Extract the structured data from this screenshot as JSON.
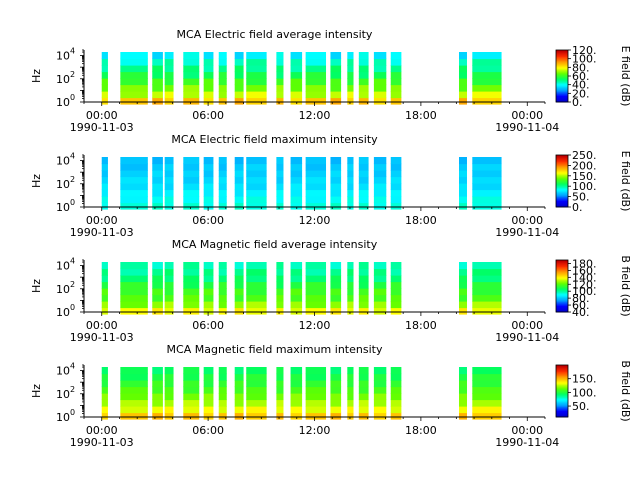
{
  "chart_data": [
    {
      "type": "heatmap",
      "title": "MCA  Electric field average intensity",
      "ylabel": "Hz",
      "y_scale": "log",
      "ylim": [
        1,
        30000
      ],
      "y_ticks": [
        {
          "value": 1,
          "label": "10",
          "exp": "0"
        },
        {
          "value": 100,
          "label": "10",
          "exp": "2"
        },
        {
          "value": 10000,
          "label": "10",
          "exp": "4"
        }
      ],
      "x_ticks": [
        {
          "hour": 0,
          "label": "00:00",
          "date": "1990-11-03"
        },
        {
          "hour": 6,
          "label": "06:00",
          "date": ""
        },
        {
          "hour": 12,
          "label": "12:00",
          "date": ""
        },
        {
          "hour": 18,
          "label": "18:00",
          "date": ""
        },
        {
          "hour": 24,
          "label": "00:00",
          "date": "1990-11-04"
        }
      ],
      "colorbar": {
        "label": "E field (dB)",
        "range": [
          0,
          120
        ],
        "ticks": [
          "0.",
          "20.",
          "40.",
          "60.",
          "80.",
          "100.",
          "120."
        ],
        "tick_values": [
          0,
          20,
          40,
          60,
          80,
          100,
          120
        ]
      },
      "colormap": [
        "#0000c8",
        "#0000ff",
        "#00a0ff",
        "#00ffff",
        "#00ff60",
        "#60ff00",
        "#ffff00",
        "#ffa000",
        "#ff3000",
        "#c00000"
      ],
      "data_intervals_hours": [
        [
          0.0,
          0.35
        ],
        [
          1.05,
          2.6
        ],
        [
          2.85,
          3.45
        ],
        [
          3.55,
          4.05
        ],
        [
          4.6,
          5.5
        ],
        [
          5.75,
          6.3
        ],
        [
          6.6,
          7.05
        ],
        [
          7.5,
          8.0
        ],
        [
          8.15,
          9.3
        ],
        [
          9.85,
          10.25
        ],
        [
          10.65,
          11.3
        ],
        [
          11.5,
          12.65
        ],
        [
          12.9,
          13.5
        ],
        [
          13.85,
          14.2
        ],
        [
          14.5,
          15.05
        ],
        [
          15.35,
          16.05
        ],
        [
          16.3,
          16.9
        ],
        [
          20.15,
          20.6
        ],
        [
          20.9,
          22.55
        ]
      ],
      "band_values_low_to_high": [
        88,
        75,
        68,
        62,
        55,
        50,
        45,
        38
      ]
    },
    {
      "type": "heatmap",
      "title": "MCA  Electric field maximum intensity",
      "ylabel": "Hz",
      "y_scale": "log",
      "ylim": [
        1,
        30000
      ],
      "y_ticks": [
        {
          "value": 1,
          "label": "10",
          "exp": "0"
        },
        {
          "value": 100,
          "label": "10",
          "exp": "2"
        },
        {
          "value": 10000,
          "label": "10",
          "exp": "4"
        }
      ],
      "x_ticks": [
        {
          "hour": 0,
          "label": "00:00",
          "date": "1990-11-03"
        },
        {
          "hour": 6,
          "label": "06:00",
          "date": ""
        },
        {
          "hour": 12,
          "label": "12:00",
          "date": ""
        },
        {
          "hour": 18,
          "label": "18:00",
          "date": ""
        },
        {
          "hour": 24,
          "label": "00:00",
          "date": "1990-11-04"
        }
      ],
      "colorbar": {
        "label": "E field (dB)",
        "range": [
          0,
          250
        ],
        "ticks": [
          "0.",
          "50.",
          "100.",
          "150.",
          "200.",
          "250."
        ],
        "tick_values": [
          0,
          50,
          100,
          150,
          200,
          250
        ]
      },
      "colormap": [
        "#0000c8",
        "#0000ff",
        "#00a0ff",
        "#00ffff",
        "#00ff60",
        "#60ff00",
        "#ffff00",
        "#ffa000",
        "#ff3000",
        "#c00000"
      ],
      "data_intervals_hours": [
        [
          0.0,
          0.35
        ],
        [
          1.05,
          2.6
        ],
        [
          2.85,
          3.45
        ],
        [
          3.55,
          4.05
        ],
        [
          4.6,
          5.5
        ],
        [
          5.75,
          6.3
        ],
        [
          6.6,
          7.05
        ],
        [
          7.5,
          8.0
        ],
        [
          8.15,
          9.3
        ],
        [
          9.85,
          10.25
        ],
        [
          10.65,
          11.3
        ],
        [
          11.5,
          12.65
        ],
        [
          12.9,
          13.5
        ],
        [
          13.85,
          14.2
        ],
        [
          14.5,
          15.05
        ],
        [
          15.35,
          16.05
        ],
        [
          16.3,
          16.9
        ],
        [
          20.15,
          20.6
        ],
        [
          20.9,
          22.55
        ]
      ],
      "band_values_low_to_high": [
        90,
        85,
        80,
        75,
        72,
        70,
        68,
        65
      ]
    },
    {
      "type": "heatmap",
      "title": "MCA  Magnetic field average intensity",
      "ylabel": "Hz",
      "y_scale": "log",
      "ylim": [
        1,
        30000
      ],
      "y_ticks": [
        {
          "value": 1,
          "label": "10",
          "exp": "0"
        },
        {
          "value": 100,
          "label": "10",
          "exp": "2"
        },
        {
          "value": 10000,
          "label": "10",
          "exp": "4"
        }
      ],
      "x_ticks": [
        {
          "hour": 0,
          "label": "00:00",
          "date": "1990-11-03"
        },
        {
          "hour": 6,
          "label": "06:00",
          "date": ""
        },
        {
          "hour": 12,
          "label": "12:00",
          "date": ""
        },
        {
          "hour": 18,
          "label": "18:00",
          "date": ""
        },
        {
          "hour": 24,
          "label": "00:00",
          "date": "1990-11-04"
        }
      ],
      "colorbar": {
        "label": "B field (dB)",
        "range": [
          40,
          190
        ],
        "ticks": [
          "40.",
          "60.",
          "80.",
          "100.",
          "120.",
          "140.",
          "160.",
          "180."
        ],
        "tick_values": [
          40,
          60,
          80,
          100,
          120,
          140,
          160,
          180
        ]
      },
      "colormap": [
        "#0000c8",
        "#0000ff",
        "#00a0ff",
        "#00ffff",
        "#00ff60",
        "#60ff00",
        "#ffff00",
        "#ffa000",
        "#ff3000",
        "#c00000"
      ],
      "data_intervals_hours": [
        [
          0.0,
          0.35
        ],
        [
          1.05,
          2.6
        ],
        [
          2.85,
          3.45
        ],
        [
          3.55,
          4.05
        ],
        [
          4.6,
          5.5
        ],
        [
          5.75,
          6.3
        ],
        [
          6.6,
          7.05
        ],
        [
          7.5,
          8.0
        ],
        [
          8.15,
          9.3
        ],
        [
          9.85,
          10.25
        ],
        [
          10.65,
          11.3
        ],
        [
          11.5,
          12.65
        ],
        [
          12.9,
          13.5
        ],
        [
          13.85,
          14.2
        ],
        [
          14.5,
          15.05
        ],
        [
          15.35,
          16.05
        ],
        [
          16.3,
          16.9
        ],
        [
          20.15,
          20.6
        ],
        [
          20.9,
          22.55
        ]
      ],
      "band_values_low_to_high": [
        140,
        128,
        120,
        118,
        112,
        105,
        102,
        98
      ]
    },
    {
      "type": "heatmap",
      "title": "MCA  Magnetic field maximum intensity",
      "ylabel": "Hz",
      "y_scale": "log",
      "ylim": [
        1,
        30000
      ],
      "y_ticks": [
        {
          "value": 1,
          "label": "10",
          "exp": "0"
        },
        {
          "value": 100,
          "label": "10",
          "exp": "2"
        },
        {
          "value": 10000,
          "label": "10",
          "exp": "4"
        }
      ],
      "x_ticks": [
        {
          "hour": 0,
          "label": "00:00",
          "date": "1990-11-03"
        },
        {
          "hour": 6,
          "label": "06:00",
          "date": ""
        },
        {
          "hour": 12,
          "label": "12:00",
          "date": ""
        },
        {
          "hour": 18,
          "label": "18:00",
          "date": ""
        },
        {
          "hour": 24,
          "label": "00:00",
          "date": "1990-11-04"
        }
      ],
      "colorbar": {
        "label": "B field (dB)",
        "range": [
          10,
          200
        ],
        "ticks": [
          "50.",
          "100.",
          "150."
        ],
        "tick_values": [
          50,
          100,
          150
        ]
      },
      "colormap": [
        "#0000c8",
        "#0000ff",
        "#00a0ff",
        "#00ffff",
        "#00ff60",
        "#60ff00",
        "#ffff00",
        "#ffa000",
        "#ff3000",
        "#c00000"
      ],
      "data_intervals_hours": [
        [
          0.0,
          0.35
        ],
        [
          1.05,
          2.6
        ],
        [
          2.85,
          3.45
        ],
        [
          3.55,
          4.05
        ],
        [
          4.6,
          5.5
        ],
        [
          5.75,
          6.3
        ],
        [
          6.6,
          7.05
        ],
        [
          7.5,
          8.0
        ],
        [
          8.15,
          9.3
        ],
        [
          9.85,
          10.25
        ],
        [
          10.65,
          11.3
        ],
        [
          11.5,
          12.65
        ],
        [
          12.9,
          13.5
        ],
        [
          13.85,
          14.2
        ],
        [
          14.5,
          15.05
        ],
        [
          15.35,
          16.05
        ],
        [
          16.3,
          16.9
        ],
        [
          20.15,
          20.6
        ],
        [
          20.9,
          22.55
        ]
      ],
      "band_values_low_to_high": [
        150,
        135,
        125,
        118,
        110,
        105,
        100,
        95
      ]
    }
  ]
}
